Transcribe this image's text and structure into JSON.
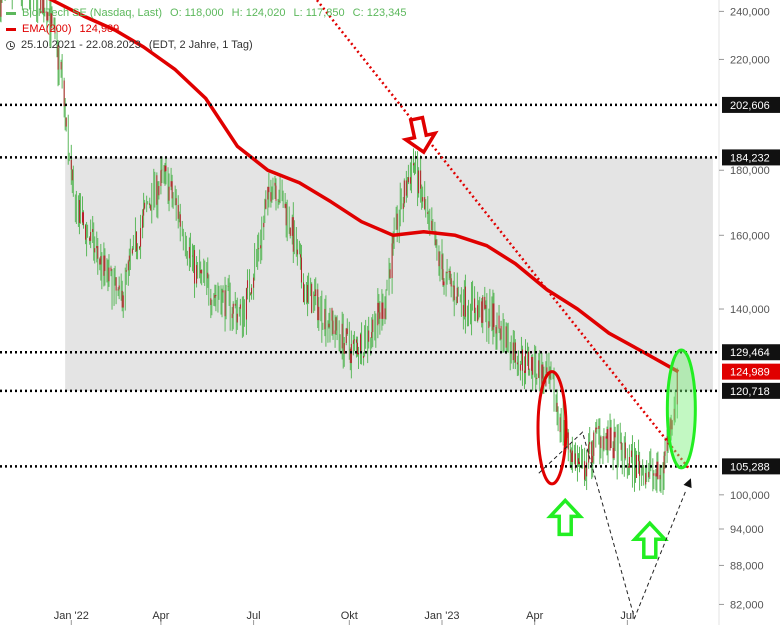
{
  "legend": {
    "instrument": "BioNTech SE (Nasdaq, Last)",
    "open": "O: 118,000",
    "high": "H: 124,020",
    "low": "L: 117,850",
    "close": "C: 123,345",
    "ema_label": "EMA(200)",
    "ema_value": "124,989",
    "date_range": "25.10.2021 - 22.08.2023",
    "settings": "(EDT, 2 Jahre, 1 Tag)"
  },
  "colors": {
    "price": "#5cb85c",
    "ema": "#e00000",
    "zone": "#e4e4e4",
    "level": "#000000",
    "trendline": "#e00000"
  },
  "chart_data": {
    "type": "line",
    "title": "",
    "xlabel": "",
    "ylabel": "",
    "y_scale": "log",
    "ylim": [
      79000,
      245000
    ],
    "x_range": [
      "2021-10-25",
      "2023-09-30"
    ],
    "x_ticks": [
      {
        "label": "Jan '22",
        "date": "2022-01-03"
      },
      {
        "label": "Apr",
        "date": "2022-04-01"
      },
      {
        "label": "Jul",
        "date": "2022-07-01"
      },
      {
        "label": "Okt",
        "date": "2022-10-03"
      },
      {
        "label": "Jan '23",
        "date": "2023-01-02"
      },
      {
        "label": "Apr",
        "date": "2023-04-03"
      },
      {
        "label": "Jul",
        "date": "2023-07-03"
      }
    ],
    "y_ticks": [
      {
        "label": "240,000",
        "value": 240000
      },
      {
        "label": "220,000",
        "value": 220000
      },
      {
        "label": "180,000",
        "value": 180000
      },
      {
        "label": "160,000",
        "value": 160000
      },
      {
        "label": "140,000",
        "value": 140000
      },
      {
        "label": "100,000",
        "value": 100000
      },
      {
        "label": "94,000",
        "value": 94000
      },
      {
        "label": "88,000",
        "value": 88000
      },
      {
        "label": "82,000",
        "value": 82000
      }
    ],
    "levels": [
      {
        "label": "202,606",
        "value": 202606
      },
      {
        "label": "184,232",
        "value": 184232
      },
      {
        "label": "129,464",
        "value": 129464
      },
      {
        "label": "120,718",
        "value": 120718
      },
      {
        "label": "105,288",
        "value": 105288
      }
    ],
    "last_ema_label": "124,989",
    "zone": {
      "from": "2021-12-28",
      "to": "2023-09-25",
      "low": 120718,
      "high": 184232
    },
    "series": [
      {
        "role": "price",
        "x": [
          "2021-10-25",
          "2021-11-10",
          "2021-11-25",
          "2021-12-10",
          "2021-12-24",
          "2022-01-05",
          "2022-01-20",
          "2022-02-05",
          "2022-02-20",
          "2022-03-05",
          "2022-03-20",
          "2022-04-05",
          "2022-04-20",
          "2022-05-05",
          "2022-05-20",
          "2022-06-05",
          "2022-06-20",
          "2022-07-05",
          "2022-07-20",
          "2022-08-05",
          "2022-08-20",
          "2022-09-05",
          "2022-09-20",
          "2022-10-05",
          "2022-10-20",
          "2022-11-05",
          "2022-11-20",
          "2022-12-05",
          "2022-12-20",
          "2023-01-05",
          "2023-01-20",
          "2023-02-05",
          "2023-02-20",
          "2023-03-05",
          "2023-03-20",
          "2023-04-05",
          "2023-04-20",
          "2023-05-05",
          "2023-05-20",
          "2023-06-05",
          "2023-06-20",
          "2023-07-05",
          "2023-07-20",
          "2023-08-05",
          "2023-08-22"
        ],
        "values": [
          245000,
          250000,
          248000,
          243000,
          215000,
          170000,
          160000,
          150000,
          142000,
          155000,
          170000,
          178000,
          165000,
          150000,
          145000,
          142000,
          138000,
          155000,
          178000,
          165000,
          145000,
          140000,
          135000,
          130000,
          133000,
          140000,
          165000,
          183000,
          162000,
          148000,
          143000,
          140000,
          138000,
          133000,
          128000,
          126000,
          121000,
          110000,
          104000,
          112000,
          109000,
          106000,
          105000,
          103000,
          123345
        ]
      },
      {
        "role": "ema",
        "name": "EMA(200)",
        "x": [
          "2021-11-15",
          "2021-12-15",
          "2022-01-15",
          "2022-02-15",
          "2022-03-15",
          "2022-04-15",
          "2022-05-15",
          "2022-06-15",
          "2022-07-15",
          "2022-08-15",
          "2022-09-15",
          "2022-10-15",
          "2022-11-15",
          "2022-12-15",
          "2023-01-15",
          "2023-02-15",
          "2023-03-15",
          "2023-04-15",
          "2023-05-15",
          "2023-06-15",
          "2023-07-15",
          "2023-08-22"
        ],
        "values": [
          252000,
          245000,
          238000,
          232000,
          225000,
          216000,
          205000,
          188000,
          180000,
          176000,
          170000,
          164000,
          160000,
          161000,
          160000,
          157000,
          152000,
          145000,
          140000,
          134000,
          130000,
          124989
        ]
      }
    ],
    "annotations": [
      {
        "type": "trendline",
        "from": {
          "date": "2022-08-20",
          "value": 252000
        },
        "to": {
          "date": "2023-09-01",
          "value": 105000
        }
      },
      {
        "type": "arrow-down",
        "date": "2022-12-15",
        "value": 186000,
        "color": "#e00000"
      },
      {
        "type": "arrow-up",
        "date": "2023-05-03",
        "value": 99000,
        "color": "#22ee22"
      },
      {
        "type": "arrow-up",
        "date": "2023-07-25",
        "value": 95000,
        "color": "#22ee22"
      },
      {
        "type": "ellipse",
        "date": "2023-04-20",
        "value_top": 125000,
        "value_bottom": 102000,
        "color": "#e00000"
      },
      {
        "type": "ellipse",
        "date": "2023-08-25",
        "value_top": 130000,
        "value_bottom": 105000,
        "color": "#22ee22"
      },
      {
        "type": "dashed-v",
        "points": [
          {
            "date": "2023-04-07",
            "value": 104000
          },
          {
            "date": "2023-05-20",
            "value": 112000
          },
          {
            "date": "2023-07-10",
            "value": 80000
          },
          {
            "date": "2023-08-30",
            "value": 101000
          }
        ]
      }
    ]
  }
}
